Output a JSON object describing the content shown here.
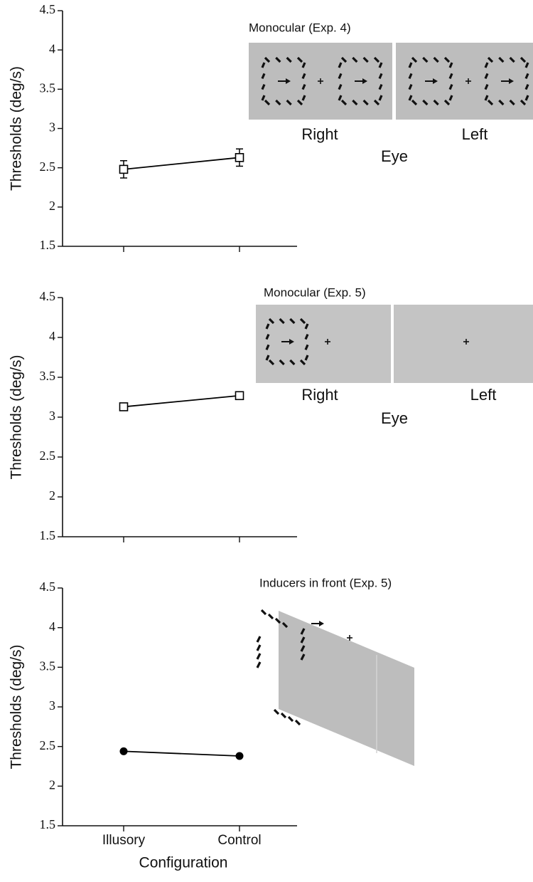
{
  "chart_data": [
    {
      "type": "line",
      "ylabel": "Thresholds (deg/s)",
      "categories": [
        null,
        null
      ],
      "series": [
        {
          "color": "#000000",
          "marker": "open-square",
          "values": [
            2.48,
            2.63
          ],
          "errors": [
            0.11,
            0.11
          ]
        }
      ],
      "ylim": [
        1.5,
        4.5
      ],
      "yticks": [
        1.5,
        2,
        2.5,
        3,
        3.5,
        4,
        4.5
      ],
      "annotations": [
        "Monocular (Exp. 4)",
        "Right",
        "Left",
        "Eye"
      ]
    },
    {
      "type": "line",
      "ylabel": "Thresholds (deg/s)",
      "categories": [
        null,
        null
      ],
      "series": [
        {
          "color": "#000000",
          "marker": "open-square",
          "values": [
            3.13,
            3.27
          ]
        }
      ],
      "ylim": [
        1.5,
        4.5
      ],
      "yticks": [
        1.5,
        2,
        2.5,
        3,
        3.5,
        4,
        4.5
      ],
      "annotations": [
        "Monocular (Exp. 5)",
        "Right",
        "Left",
        "Eye"
      ]
    },
    {
      "type": "line",
      "ylabel": "Thresholds (deg/s)",
      "xlabel": "Configuration",
      "categories": [
        "Illusory",
        "Control"
      ],
      "series": [
        {
          "color": "#000000",
          "marker": "filled-circle",
          "values": [
            2.44,
            2.38
          ]
        }
      ],
      "ylim": [
        1.5,
        4.5
      ],
      "yticks": [
        1.5,
        2,
        2.5,
        3,
        3.5,
        4,
        4.5
      ],
      "annotations": [
        "Inducers in front (Exp. 5)"
      ]
    }
  ]
}
